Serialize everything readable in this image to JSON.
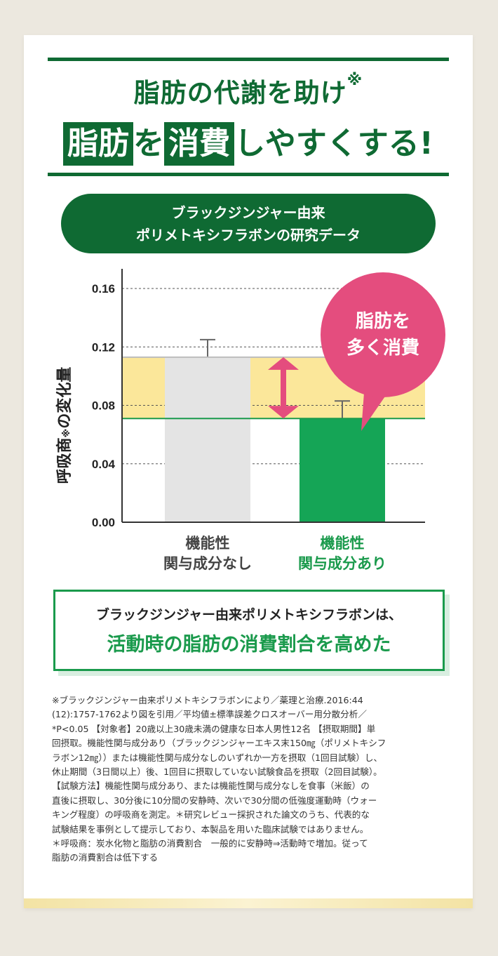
{
  "headline": {
    "line1": "脂肪の代謝を助け",
    "line1_mark": "※",
    "line2_box1": "脂肪",
    "line2_mid": "を",
    "line2_box2": "消費",
    "line2_end": "しやすくする!"
  },
  "pill": {
    "line1": "ブラックジンジャー由来",
    "line2": "ポリメトキシフラボンの研究データ"
  },
  "chart_data": {
    "type": "bar",
    "categories": [
      "機能性関与成分なし",
      "機能性関与成分あり"
    ],
    "category_lines": [
      [
        "機能性",
        "関与成分なし"
      ],
      [
        "機能性",
        "関与成分あり"
      ]
    ],
    "values": [
      0.113,
      0.071
    ],
    "errors": [
      0.012,
      0.012
    ],
    "ylabel": "呼吸商",
    "ylabel_mark": "※",
    "ylabel_suffix": "の変化量",
    "ylim": [
      0,
      0.16
    ],
    "yticks": [
      "0.00",
      "0.04",
      "0.08",
      "0.12",
      "0.16"
    ],
    "grid": true,
    "colors": {
      "bar_a": "#e4e4e4",
      "bar_b": "#15a556",
      "band": "#fbe79a",
      "arrow": "#e44d7e"
    },
    "annotation": {
      "line1": "脂肪を",
      "line2": "多く消費"
    }
  },
  "result": {
    "line1": "ブラックジンジャー由来ポリメトキシフラボンは、",
    "line2": "活動時の脂肪の消費割合を高めた"
  },
  "notes": [
    "※ブラックジンジャー由来ポリメトキシフラボンにより／薬理と治療.2016:44",
    "(12):1757-1762より図を引用／平均値±標準誤差クロスオーバー用分散分析／",
    "*P<0.05 【対象者】20歳以上30歳未満の健康な日本人男性12名 【摂取期間】単",
    "回摂取。機能性関与成分あり（ブラックジンジャーエキス末150㎎（ポリメトキシフ",
    "ラボン12㎎））または機能性関与成分なしのいずれか一方を摂取（1回目試験）し、",
    "休止期間（3日間以上）後、1回目に摂取していない試験食品を摂取（2回目試験）。",
    "【試験方法】機能性関与成分あり、または機能性関与成分なしを食事（米飯）の",
    "直後に摂取し、30分後に10分間の安静時、次いで30分間の低強度運動時（ウォー",
    "キング程度）の呼吸商を測定。＊研究レビュー採択された論文のうち、代表的な",
    "試験結果を事例として提示しており、本製品を用いた臨床試験ではありません。",
    "＊呼吸商：炭水化物と脂肪の消費割合　一般的に安静時⇒活動時で増加。従って",
    "脂肪の消費割合は低下する"
  ]
}
